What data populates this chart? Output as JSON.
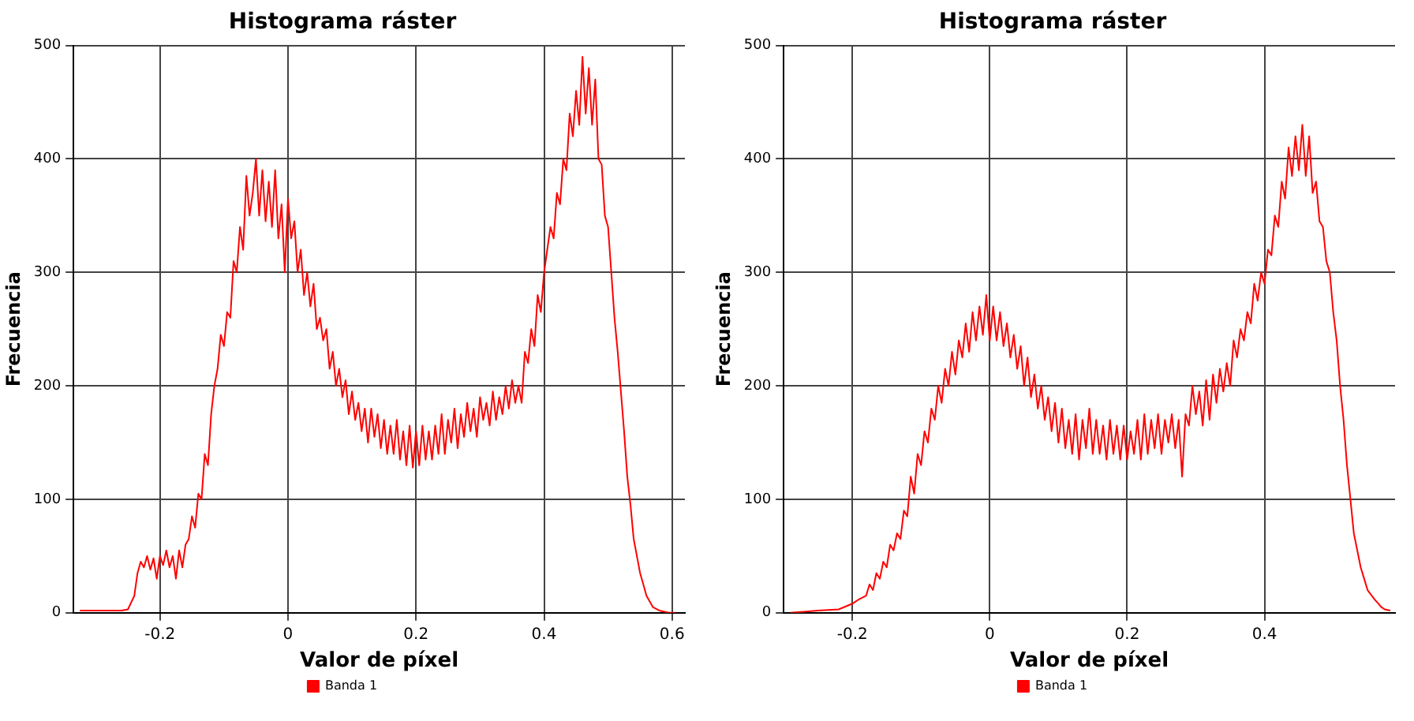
{
  "chart_data": [
    {
      "type": "line",
      "title": "Histograma ráster",
      "xlabel": "Valor de píxel",
      "ylabel": "Frecuencia",
      "xlim": [
        -0.335,
        0.62
      ],
      "xticks": [
        -0.2,
        0,
        0.2,
        0.4,
        0.6
      ],
      "ylim": [
        0,
        500
      ],
      "yticks": [
        0,
        100,
        200,
        300,
        400,
        500
      ],
      "grid": true,
      "legend": "bottom",
      "marker": "none",
      "line_style": "solid",
      "x": [
        -0.325,
        -0.26,
        -0.25,
        -0.24,
        -0.235,
        -0.23,
        -0.225,
        -0.22,
        -0.215,
        -0.21,
        -0.205,
        -0.2,
        -0.195,
        -0.19,
        -0.185,
        -0.18,
        -0.175,
        -0.17,
        -0.165,
        -0.16,
        -0.155,
        -0.15,
        -0.145,
        -0.14,
        -0.135,
        -0.13,
        -0.125,
        -0.12,
        -0.115,
        -0.11,
        -0.105,
        -0.1,
        -0.095,
        -0.09,
        -0.085,
        -0.08,
        -0.075,
        -0.07,
        -0.065,
        -0.06,
        -0.055,
        -0.05,
        -0.045,
        -0.04,
        -0.035,
        -0.03,
        -0.025,
        -0.02,
        -0.015,
        -0.01,
        -0.005,
        0,
        0.005,
        0.01,
        0.015,
        0.02,
        0.025,
        0.03,
        0.035,
        0.04,
        0.045,
        0.05,
        0.055,
        0.06,
        0.065,
        0.07,
        0.075,
        0.08,
        0.085,
        0.09,
        0.095,
        0.1,
        0.105,
        0.11,
        0.115,
        0.12,
        0.125,
        0.13,
        0.135,
        0.14,
        0.145,
        0.15,
        0.155,
        0.16,
        0.165,
        0.17,
        0.175,
        0.18,
        0.185,
        0.19,
        0.195,
        0.2,
        0.205,
        0.21,
        0.215,
        0.22,
        0.225,
        0.23,
        0.235,
        0.24,
        0.245,
        0.25,
        0.255,
        0.26,
        0.265,
        0.27,
        0.275,
        0.28,
        0.285,
        0.29,
        0.295,
        0.3,
        0.305,
        0.31,
        0.315,
        0.32,
        0.325,
        0.33,
        0.335,
        0.34,
        0.345,
        0.35,
        0.355,
        0.36,
        0.365,
        0.37,
        0.375,
        0.38,
        0.385,
        0.39,
        0.395,
        0.4,
        0.405,
        0.41,
        0.415,
        0.42,
        0.425,
        0.43,
        0.435,
        0.44,
        0.445,
        0.45,
        0.455,
        0.46,
        0.465,
        0.47,
        0.475,
        0.48,
        0.485,
        0.49,
        0.495,
        0.5,
        0.505,
        0.51,
        0.515,
        0.52,
        0.525,
        0.53,
        0.535,
        0.54,
        0.545,
        0.55,
        0.555,
        0.56,
        0.565,
        0.57,
        0.58,
        0.595,
        0.605
      ],
      "series": [
        {
          "name": "Banda 1",
          "color": "#ff0000",
          "values": [
            2,
            2,
            3,
            15,
            35,
            45,
            40,
            50,
            38,
            48,
            30,
            50,
            42,
            55,
            40,
            50,
            30,
            55,
            40,
            60,
            65,
            85,
            75,
            105,
            100,
            140,
            130,
            175,
            200,
            215,
            245,
            235,
            265,
            260,
            310,
            300,
            340,
            320,
            385,
            350,
            370,
            400,
            350,
            390,
            345,
            380,
            340,
            390,
            330,
            360,
            300,
            365,
            330,
            345,
            300,
            320,
            280,
            300,
            270,
            290,
            250,
            260,
            240,
            250,
            215,
            230,
            200,
            215,
            190,
            205,
            175,
            195,
            170,
            185,
            160,
            180,
            150,
            180,
            155,
            175,
            145,
            170,
            140,
            165,
            140,
            170,
            135,
            160,
            130,
            165,
            128,
            160,
            130,
            165,
            135,
            160,
            135,
            165,
            140,
            175,
            140,
            170,
            150,
            180,
            145,
            175,
            155,
            185,
            160,
            180,
            155,
            190,
            170,
            185,
            165,
            195,
            170,
            190,
            175,
            200,
            180,
            205,
            185,
            200,
            185,
            230,
            220,
            250,
            235,
            280,
            265,
            300,
            320,
            340,
            330,
            370,
            360,
            400,
            390,
            440,
            420,
            460,
            430,
            490,
            440,
            480,
            430,
            470,
            400,
            395,
            350,
            340,
            300,
            260,
            230,
            195,
            160,
            120,
            95,
            65,
            50,
            35,
            25,
            15,
            10,
            5,
            2,
            0,
            0
          ]
        }
      ]
    },
    {
      "type": "line",
      "title": "Histograma ráster",
      "xlabel": "Valor de píxel",
      "ylabel": "Frecuencia",
      "xlim": [
        -0.3,
        0.59
      ],
      "xticks": [
        -0.2,
        0,
        0.2,
        0.4
      ],
      "ylim": [
        0,
        500
      ],
      "yticks": [
        0,
        100,
        200,
        300,
        400,
        500
      ],
      "grid": true,
      "legend": "bottom",
      "marker": "none",
      "line_style": "solid",
      "x": [
        -0.29,
        -0.25,
        -0.22,
        -0.2,
        -0.19,
        -0.18,
        -0.175,
        -0.17,
        -0.165,
        -0.16,
        -0.155,
        -0.15,
        -0.145,
        -0.14,
        -0.135,
        -0.13,
        -0.125,
        -0.12,
        -0.115,
        -0.11,
        -0.105,
        -0.1,
        -0.095,
        -0.09,
        -0.085,
        -0.08,
        -0.075,
        -0.07,
        -0.065,
        -0.06,
        -0.055,
        -0.05,
        -0.045,
        -0.04,
        -0.035,
        -0.03,
        -0.025,
        -0.02,
        -0.015,
        -0.01,
        -0.005,
        0,
        0.005,
        0.01,
        0.015,
        0.02,
        0.025,
        0.03,
        0.035,
        0.04,
        0.045,
        0.05,
        0.055,
        0.06,
        0.065,
        0.07,
        0.075,
        0.08,
        0.085,
        0.09,
        0.095,
        0.1,
        0.105,
        0.11,
        0.115,
        0.12,
        0.125,
        0.13,
        0.135,
        0.14,
        0.145,
        0.15,
        0.155,
        0.16,
        0.165,
        0.17,
        0.175,
        0.18,
        0.185,
        0.19,
        0.195,
        0.2,
        0.205,
        0.21,
        0.215,
        0.22,
        0.225,
        0.23,
        0.235,
        0.24,
        0.245,
        0.25,
        0.255,
        0.26,
        0.265,
        0.27,
        0.275,
        0.28,
        0.285,
        0.29,
        0.295,
        0.3,
        0.305,
        0.31,
        0.315,
        0.32,
        0.325,
        0.33,
        0.335,
        0.34,
        0.345,
        0.35,
        0.355,
        0.36,
        0.365,
        0.37,
        0.375,
        0.38,
        0.385,
        0.39,
        0.395,
        0.4,
        0.405,
        0.41,
        0.415,
        0.42,
        0.425,
        0.43,
        0.435,
        0.44,
        0.445,
        0.45,
        0.455,
        0.46,
        0.465,
        0.47,
        0.475,
        0.48,
        0.485,
        0.49,
        0.495,
        0.5,
        0.505,
        0.51,
        0.515,
        0.52,
        0.525,
        0.53,
        0.535,
        0.54,
        0.545,
        0.55,
        0.56,
        0.57,
        0.575,
        0.583
      ],
      "series": [
        {
          "name": "Banda 1",
          "color": "#ff0000",
          "values": [
            0,
            2,
            3,
            8,
            12,
            15,
            25,
            20,
            35,
            30,
            45,
            40,
            60,
            55,
            70,
            65,
            90,
            85,
            120,
            105,
            140,
            130,
            160,
            150,
            180,
            170,
            200,
            185,
            215,
            200,
            230,
            210,
            240,
            225,
            255,
            230,
            265,
            240,
            270,
            245,
            280,
            240,
            270,
            240,
            265,
            235,
            255,
            225,
            245,
            215,
            235,
            200,
            225,
            190,
            210,
            180,
            200,
            170,
            190,
            160,
            185,
            150,
            180,
            145,
            170,
            140,
            175,
            135,
            170,
            145,
            180,
            140,
            170,
            140,
            165,
            135,
            170,
            140,
            165,
            135,
            165,
            135,
            160,
            140,
            170,
            135,
            175,
            140,
            170,
            145,
            175,
            140,
            170,
            150,
            175,
            145,
            170,
            120,
            175,
            165,
            200,
            175,
            195,
            165,
            205,
            170,
            210,
            185,
            215,
            195,
            220,
            200,
            240,
            225,
            250,
            240,
            265,
            255,
            290,
            275,
            300,
            290,
            320,
            315,
            350,
            340,
            380,
            365,
            410,
            385,
            420,
            390,
            430,
            385,
            420,
            370,
            380,
            345,
            340,
            310,
            300,
            265,
            240,
            200,
            170,
            130,
            100,
            70,
            55,
            40,
            30,
            20,
            12,
            5,
            3,
            2
          ]
        }
      ]
    }
  ]
}
